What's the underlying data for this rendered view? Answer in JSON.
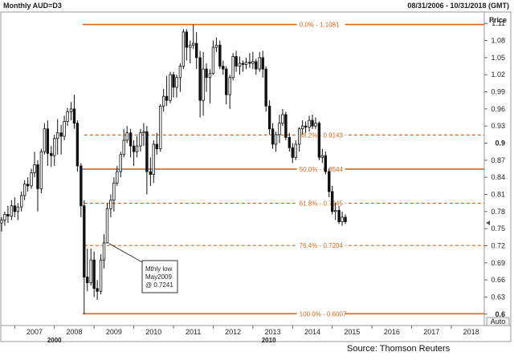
{
  "header": {
    "title": "Monthly AUD=D3",
    "date_range": "08/31/2006 - 10/31/2018 (GMT)",
    "price_label": "Price"
  },
  "controls": {
    "auto_label": "Auto"
  },
  "source": "Source: Thomson Reuters",
  "chart_data": {
    "type": "candlestick",
    "title": "Monthly AUD=D3",
    "xlabel": "",
    "ylabel": "Price",
    "xlim": [
      2006.67,
      2018.83
    ],
    "ylim": [
      0.58,
      1.13
    ],
    "x_ticks": [
      "2007",
      "2008",
      "2009",
      "2010",
      "2011",
      "2012",
      "2013",
      "2014",
      "2015",
      "2016",
      "2017",
      "2018"
    ],
    "x_decades": [
      {
        "label": "2000",
        "year": 2008
      },
      {
        "label": "2010",
        "year": 2013.4
      }
    ],
    "y_ticks": [
      "1.11",
      "1.08",
      "1.05",
      "1.02",
      "0.99",
      "0.96",
      "0.93",
      "0.9",
      "0.87",
      "0.84",
      "0.81",
      "0.78",
      "0.75",
      "0.72",
      "0.69",
      "0.66",
      "0.63",
      "0.6"
    ],
    "y_tick_values": [
      1.11,
      1.08,
      1.05,
      1.02,
      0.99,
      0.96,
      0.93,
      0.9,
      0.87,
      0.84,
      0.81,
      0.78,
      0.75,
      0.72,
      0.69,
      0.66,
      0.63,
      0.6
    ],
    "grid": false,
    "last_price": 0.76,
    "fib_levels": [
      {
        "label": "0.0%",
        "value_label": "1.1081",
        "value": 1.1081,
        "style": "solid"
      },
      {
        "label": "38.2%",
        "value_label": "0.9143",
        "value": 0.9143,
        "style": "dashed"
      },
      {
        "label": "50.0%",
        "value_label": "0.8544",
        "value": 0.8544,
        "style": "solid"
      },
      {
        "label": "61.8%",
        "value_label": "0.7945",
        "value": 0.7945,
        "style": "dashed"
      },
      {
        "label": "76.4%",
        "value_label": "0.7204",
        "value": 0.7204,
        "style": "dashed"
      },
      {
        "label": "100.0%",
        "value_label": "0.6007",
        "value": 0.6007,
        "style": "solid"
      }
    ],
    "annotation": {
      "lines": [
        "Mthly low",
        "May2009",
        "@ 0.7241"
      ],
      "target": {
        "x": 2009.37,
        "y": 0.7241
      }
    },
    "candles": [
      {
        "x": 2006.67,
        "o": 0.76,
        "h": 0.77,
        "l": 0.745,
        "c": 0.765
      },
      {
        "x": 2006.75,
        "o": 0.765,
        "h": 0.78,
        "l": 0.755,
        "c": 0.775
      },
      {
        "x": 2006.83,
        "o": 0.775,
        "h": 0.79,
        "l": 0.76,
        "c": 0.772
      },
      {
        "x": 2006.92,
        "o": 0.772,
        "h": 0.8,
        "l": 0.765,
        "c": 0.79
      },
      {
        "x": 2007.0,
        "o": 0.79,
        "h": 0.805,
        "l": 0.77,
        "c": 0.78
      },
      {
        "x": 2007.08,
        "o": 0.78,
        "h": 0.795,
        "l": 0.765,
        "c": 0.788
      },
      {
        "x": 2007.17,
        "o": 0.788,
        "h": 0.815,
        "l": 0.78,
        "c": 0.808
      },
      {
        "x": 2007.25,
        "o": 0.808,
        "h": 0.835,
        "l": 0.8,
        "c": 0.828
      },
      {
        "x": 2007.33,
        "o": 0.828,
        "h": 0.84,
        "l": 0.815,
        "c": 0.825
      },
      {
        "x": 2007.42,
        "o": 0.825,
        "h": 0.855,
        "l": 0.82,
        "c": 0.848
      },
      {
        "x": 2007.5,
        "o": 0.848,
        "h": 0.885,
        "l": 0.84,
        "c": 0.862
      },
      {
        "x": 2007.58,
        "o": 0.862,
        "h": 0.87,
        "l": 0.78,
        "c": 0.82
      },
      {
        "x": 2007.67,
        "o": 0.82,
        "h": 0.89,
        "l": 0.812,
        "c": 0.885
      },
      {
        "x": 2007.75,
        "o": 0.885,
        "h": 0.935,
        "l": 0.88,
        "c": 0.925
      },
      {
        "x": 2007.83,
        "o": 0.925,
        "h": 0.94,
        "l": 0.86,
        "c": 0.882
      },
      {
        "x": 2007.92,
        "o": 0.882,
        "h": 0.895,
        "l": 0.858,
        "c": 0.878
      },
      {
        "x": 2008.0,
        "o": 0.878,
        "h": 0.915,
        "l": 0.86,
        "c": 0.908
      },
      {
        "x": 2008.08,
        "o": 0.908,
        "h": 0.942,
        "l": 0.88,
        "c": 0.918
      },
      {
        "x": 2008.17,
        "o": 0.918,
        "h": 0.932,
        "l": 0.88,
        "c": 0.912
      },
      {
        "x": 2008.25,
        "o": 0.912,
        "h": 0.948,
        "l": 0.905,
        "c": 0.938
      },
      {
        "x": 2008.33,
        "o": 0.938,
        "h": 0.962,
        "l": 0.93,
        "c": 0.955
      },
      {
        "x": 2008.42,
        "o": 0.955,
        "h": 0.972,
        "l": 0.94,
        "c": 0.96
      },
      {
        "x": 2008.5,
        "o": 0.96,
        "h": 0.985,
        "l": 0.925,
        "c": 0.935
      },
      {
        "x": 2008.58,
        "o": 0.935,
        "h": 0.94,
        "l": 0.85,
        "c": 0.86
      },
      {
        "x": 2008.67,
        "o": 0.86,
        "h": 0.865,
        "l": 0.77,
        "c": 0.79
      },
      {
        "x": 2008.75,
        "o": 0.79,
        "h": 0.8,
        "l": 0.6,
        "c": 0.665
      },
      {
        "x": 2008.83,
        "o": 0.665,
        "h": 0.715,
        "l": 0.64,
        "c": 0.655
      },
      {
        "x": 2008.92,
        "o": 0.655,
        "h": 0.715,
        "l": 0.65,
        "c": 0.695
      },
      {
        "x": 2009.0,
        "o": 0.695,
        "h": 0.71,
        "l": 0.63,
        "c": 0.645
      },
      {
        "x": 2009.08,
        "o": 0.645,
        "h": 0.66,
        "l": 0.625,
        "c": 0.64
      },
      {
        "x": 2009.17,
        "o": 0.64,
        "h": 0.705,
        "l": 0.635,
        "c": 0.695
      },
      {
        "x": 2009.25,
        "o": 0.695,
        "h": 0.74,
        "l": 0.68,
        "c": 0.725
      },
      {
        "x": 2009.33,
        "o": 0.725,
        "h": 0.795,
        "l": 0.724,
        "c": 0.785
      },
      {
        "x": 2009.42,
        "o": 0.785,
        "h": 0.81,
        "l": 0.77,
        "c": 0.8
      },
      {
        "x": 2009.5,
        "o": 0.8,
        "h": 0.84,
        "l": 0.78,
        "c": 0.83
      },
      {
        "x": 2009.58,
        "o": 0.83,
        "h": 0.86,
        "l": 0.825,
        "c": 0.85
      },
      {
        "x": 2009.67,
        "o": 0.85,
        "h": 0.885,
        "l": 0.84,
        "c": 0.88
      },
      {
        "x": 2009.75,
        "o": 0.88,
        "h": 0.925,
        "l": 0.875,
        "c": 0.905
      },
      {
        "x": 2009.83,
        "o": 0.905,
        "h": 0.93,
        "l": 0.9,
        "c": 0.918
      },
      {
        "x": 2009.92,
        "o": 0.918,
        "h": 0.925,
        "l": 0.875,
        "c": 0.895
      },
      {
        "x": 2010.0,
        "o": 0.895,
        "h": 0.905,
        "l": 0.86,
        "c": 0.885
      },
      {
        "x": 2010.08,
        "o": 0.885,
        "h": 0.912,
        "l": 0.875,
        "c": 0.895
      },
      {
        "x": 2010.17,
        "o": 0.895,
        "h": 0.925,
        "l": 0.885,
        "c": 0.918
      },
      {
        "x": 2010.25,
        "o": 0.918,
        "h": 0.935,
        "l": 0.895,
        "c": 0.92
      },
      {
        "x": 2010.33,
        "o": 0.92,
        "h": 0.93,
        "l": 0.81,
        "c": 0.85
      },
      {
        "x": 2010.42,
        "o": 0.85,
        "h": 0.875,
        "l": 0.825,
        "c": 0.845
      },
      {
        "x": 2010.5,
        "o": 0.845,
        "h": 0.905,
        "l": 0.83,
        "c": 0.898
      },
      {
        "x": 2010.58,
        "o": 0.898,
        "h": 0.918,
        "l": 0.88,
        "c": 0.89
      },
      {
        "x": 2010.67,
        "o": 0.89,
        "h": 0.968,
        "l": 0.885,
        "c": 0.965
      },
      {
        "x": 2010.75,
        "o": 0.965,
        "h": 0.995,
        "l": 0.955,
        "c": 0.982
      },
      {
        "x": 2010.83,
        "o": 0.982,
        "h": 1.018,
        "l": 0.965,
        "c": 0.975
      },
      {
        "x": 2010.92,
        "o": 0.975,
        "h": 1.025,
        "l": 0.97,
        "c": 1.02
      },
      {
        "x": 2011.0,
        "o": 1.02,
        "h": 1.025,
        "l": 0.98,
        "c": 0.998
      },
      {
        "x": 2011.08,
        "o": 0.998,
        "h": 1.02,
        "l": 0.98,
        "c": 1.015
      },
      {
        "x": 2011.17,
        "o": 1.015,
        "h": 1.04,
        "l": 0.99,
        "c": 1.035
      },
      {
        "x": 2011.25,
        "o": 1.035,
        "h": 1.1,
        "l": 1.03,
        "c": 1.095
      },
      {
        "x": 2011.33,
        "o": 1.095,
        "h": 1.1,
        "l": 1.045,
        "c": 1.068
      },
      {
        "x": 2011.42,
        "o": 1.068,
        "h": 1.08,
        "l": 1.04,
        "c": 1.072
      },
      {
        "x": 2011.5,
        "o": 1.072,
        "h": 1.108,
        "l": 1.065,
        "c": 1.075
      },
      {
        "x": 2011.58,
        "o": 1.075,
        "h": 1.095,
        "l": 1.03,
        "c": 1.05
      },
      {
        "x": 2011.67,
        "o": 1.05,
        "h": 1.062,
        "l": 0.945,
        "c": 0.975
      },
      {
        "x": 2011.75,
        "o": 0.975,
        "h": 1.06,
        "l": 0.948,
        "c": 1.03
      },
      {
        "x": 2011.83,
        "o": 1.03,
        "h": 1.04,
        "l": 0.99,
        "c": 1.015
      },
      {
        "x": 2011.92,
        "o": 1.015,
        "h": 1.03,
        "l": 0.97,
        "c": 1.022
      },
      {
        "x": 2012.0,
        "o": 1.022,
        "h": 1.08,
        "l": 1.02,
        "c": 1.068
      },
      {
        "x": 2012.08,
        "o": 1.068,
        "h": 1.085,
        "l": 1.06,
        "c": 1.072
      },
      {
        "x": 2012.17,
        "o": 1.072,
        "h": 1.08,
        "l": 1.03,
        "c": 1.035
      },
      {
        "x": 2012.25,
        "o": 1.035,
        "h": 1.045,
        "l": 1.02,
        "c": 1.03
      },
      {
        "x": 2012.33,
        "o": 1.03,
        "h": 1.035,
        "l": 0.968,
        "c": 0.985
      },
      {
        "x": 2012.42,
        "o": 0.985,
        "h": 1.02,
        "l": 0.96,
        "c": 1.015
      },
      {
        "x": 2012.5,
        "o": 1.015,
        "h": 1.058,
        "l": 1.01,
        "c": 1.052
      },
      {
        "x": 2012.58,
        "o": 1.052,
        "h": 1.062,
        "l": 1.025,
        "c": 1.035
      },
      {
        "x": 2012.67,
        "o": 1.035,
        "h": 1.052,
        "l": 1.02,
        "c": 1.04
      },
      {
        "x": 2012.75,
        "o": 1.04,
        "h": 1.045,
        "l": 1.025,
        "c": 1.038
      },
      {
        "x": 2012.83,
        "o": 1.038,
        "h": 1.05,
        "l": 1.03,
        "c": 1.042
      },
      {
        "x": 2012.92,
        "o": 1.042,
        "h": 1.058,
        "l": 1.032,
        "c": 1.04
      },
      {
        "x": 2013.0,
        "o": 1.04,
        "h": 1.06,
        "l": 1.03,
        "c": 1.043
      },
      {
        "x": 2013.08,
        "o": 1.043,
        "h": 1.048,
        "l": 1.02,
        "c": 1.03
      },
      {
        "x": 2013.17,
        "o": 1.03,
        "h": 1.06,
        "l": 1.025,
        "c": 1.05
      },
      {
        "x": 2013.25,
        "o": 1.05,
        "h": 1.062,
        "l": 1.015,
        "c": 1.03
      },
      {
        "x": 2013.33,
        "o": 1.03,
        "h": 1.035,
        "l": 0.955,
        "c": 0.965
      },
      {
        "x": 2013.42,
        "o": 0.965,
        "h": 0.975,
        "l": 0.915,
        "c": 0.925
      },
      {
        "x": 2013.5,
        "o": 0.925,
        "h": 0.935,
        "l": 0.89,
        "c": 0.898
      },
      {
        "x": 2013.58,
        "o": 0.898,
        "h": 0.92,
        "l": 0.885,
        "c": 0.915
      },
      {
        "x": 2013.67,
        "o": 0.915,
        "h": 0.95,
        "l": 0.9,
        "c": 0.935
      },
      {
        "x": 2013.75,
        "o": 0.935,
        "h": 0.96,
        "l": 0.93,
        "c": 0.95
      },
      {
        "x": 2013.83,
        "o": 0.95,
        "h": 0.955,
        "l": 0.905,
        "c": 0.91
      },
      {
        "x": 2013.92,
        "o": 0.91,
        "h": 0.918,
        "l": 0.885,
        "c": 0.892
      },
      {
        "x": 2014.0,
        "o": 0.892,
        "h": 0.9,
        "l": 0.865,
        "c": 0.875
      },
      {
        "x": 2014.08,
        "o": 0.875,
        "h": 0.905,
        "l": 0.87,
        "c": 0.898
      },
      {
        "x": 2014.17,
        "o": 0.898,
        "h": 0.928,
        "l": 0.885,
        "c": 0.925
      },
      {
        "x": 2014.25,
        "o": 0.925,
        "h": 0.94,
        "l": 0.915,
        "c": 0.93
      },
      {
        "x": 2014.33,
        "o": 0.93,
        "h": 0.938,
        "l": 0.918,
        "c": 0.928
      },
      {
        "x": 2014.42,
        "o": 0.928,
        "h": 0.948,
        "l": 0.92,
        "c": 0.94
      },
      {
        "x": 2014.5,
        "o": 0.94,
        "h": 0.95,
        "l": 0.925,
        "c": 0.93
      },
      {
        "x": 2014.58,
        "o": 0.93,
        "h": 0.945,
        "l": 0.925,
        "c": 0.935
      },
      {
        "x": 2014.67,
        "o": 0.935,
        "h": 0.938,
        "l": 0.87,
        "c": 0.875
      },
      {
        "x": 2014.75,
        "o": 0.875,
        "h": 0.89,
        "l": 0.865,
        "c": 0.878
      },
      {
        "x": 2014.83,
        "o": 0.878,
        "h": 0.885,
        "l": 0.845,
        "c": 0.85
      },
      {
        "x": 2014.92,
        "o": 0.85,
        "h": 0.855,
        "l": 0.805,
        "c": 0.815
      },
      {
        "x": 2015.0,
        "o": 0.815,
        "h": 0.825,
        "l": 0.775,
        "c": 0.78
      },
      {
        "x": 2015.08,
        "o": 0.78,
        "h": 0.795,
        "l": 0.765,
        "c": 0.782
      },
      {
        "x": 2015.17,
        "o": 0.782,
        "h": 0.79,
        "l": 0.758,
        "c": 0.762
      },
      {
        "x": 2015.25,
        "o": 0.762,
        "h": 0.78,
        "l": 0.755,
        "c": 0.77
      },
      {
        "x": 2015.33,
        "o": 0.77,
        "h": 0.775,
        "l": 0.758,
        "c": 0.762
      }
    ]
  }
}
